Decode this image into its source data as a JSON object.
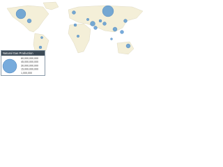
{
  "legend": {
    "title": "Natural Gas Production",
    "labels": [
      "60,000,000,000",
      "45,000,000,000",
      "30,000,000,000",
      "15,000,000,000",
      "1,000,000"
    ]
  }
}
